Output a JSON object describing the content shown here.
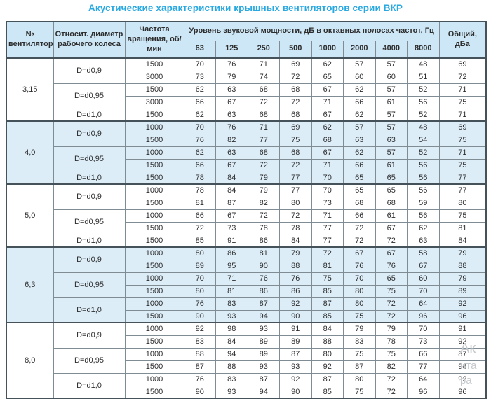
{
  "title": "Акустические характеристики крышных вентиляторов серии ВКР",
  "colors": {
    "title_accent": "#29a9e1",
    "header_bg": "#cde7f6",
    "band_bg": "#dcedf8",
    "grid_border": "#7f8c94",
    "frame_border": "#46525a",
    "text": "#2d2d2d",
    "watermark": "#c6cacd"
  },
  "watermark": {
    "line1": "Ак",
    "line2": "ита",
    "line3": "ра"
  },
  "table": {
    "headers": {
      "fan": "№ вентилятора",
      "diameter": "Относит. диаметр рабочего колеса",
      "speed": "Частота вращения, об/мин",
      "spl_group": "Уровень звуковой мощности, дБ в октавных полосах частот, Гц",
      "freqs": [
        "63",
        "125",
        "250",
        "500",
        "1000",
        "2000",
        "4000",
        "8000"
      ],
      "total": "Общий, дБа"
    },
    "groups": [
      {
        "fan": "3,15",
        "shaded": false,
        "subgroups": [
          {
            "diameter": "D=d0,9",
            "rows": [
              {
                "speed": "1500",
                "values": [
                  70,
                  76,
                  71,
                  69,
                  62,
                  57,
                  57,
                  48
                ],
                "total": 69
              },
              {
                "speed": "3000",
                "values": [
                  73,
                  79,
                  74,
                  72,
                  65,
                  60,
                  60,
                  51
                ],
                "total": 72
              }
            ]
          },
          {
            "diameter": "D=d0,95",
            "rows": [
              {
                "speed": "1500",
                "values": [
                  62,
                  63,
                  68,
                  68,
                  67,
                  62,
                  57,
                  52
                ],
                "total": 71
              },
              {
                "speed": "3000",
                "values": [
                  66,
                  67,
                  72,
                  72,
                  71,
                  66,
                  61,
                  56
                ],
                "total": 75
              }
            ]
          },
          {
            "diameter": "D=d1,0",
            "rows": [
              {
                "speed": "1500",
                "values": [
                  62,
                  63,
                  68,
                  68,
                  67,
                  62,
                  57,
                  52
                ],
                "total": 71
              }
            ]
          }
        ]
      },
      {
        "fan": "4,0",
        "shaded": true,
        "subgroups": [
          {
            "diameter": "D=d0,9",
            "rows": [
              {
                "speed": "1000",
                "values": [
                  70,
                  76,
                  71,
                  69,
                  62,
                  57,
                  57,
                  48
                ],
                "total": 69
              },
              {
                "speed": "1500",
                "values": [
                  76,
                  82,
                  77,
                  75,
                  68,
                  63,
                  63,
                  54
                ],
                "total": 75
              }
            ]
          },
          {
            "diameter": "D=d0,95",
            "rows": [
              {
                "speed": "1000",
                "values": [
                  62,
                  63,
                  68,
                  68,
                  67,
                  62,
                  57,
                  52
                ],
                "total": 71
              },
              {
                "speed": "1500",
                "values": [
                  66,
                  67,
                  72,
                  72,
                  71,
                  66,
                  61,
                  56
                ],
                "total": 75
              }
            ]
          },
          {
            "diameter": "D=d1,0",
            "rows": [
              {
                "speed": "1500",
                "values": [
                  78,
                  84,
                  79,
                  77,
                  70,
                  65,
                  65,
                  56
                ],
                "total": 77
              }
            ]
          }
        ]
      },
      {
        "fan": "5,0",
        "shaded": false,
        "subgroups": [
          {
            "diameter": "D=d0,9",
            "rows": [
              {
                "speed": "1000",
                "values": [
                  78,
                  84,
                  79,
                  77,
                  70,
                  65,
                  65,
                  56
                ],
                "total": 77
              },
              {
                "speed": "1500",
                "values": [
                  81,
                  87,
                  82,
                  80,
                  73,
                  68,
                  68,
                  59
                ],
                "total": 80
              }
            ]
          },
          {
            "diameter": "D=d0,95",
            "rows": [
              {
                "speed": "1000",
                "values": [
                  66,
                  67,
                  72,
                  72,
                  71,
                  66,
                  61,
                  56
                ],
                "total": 75
              },
              {
                "speed": "1500",
                "values": [
                  72,
                  73,
                  78,
                  78,
                  77,
                  72,
                  67,
                  62
                ],
                "total": 81
              }
            ]
          },
          {
            "diameter": "D=d1,0",
            "rows": [
              {
                "speed": "1500",
                "values": [
                  85,
                  91,
                  86,
                  84,
                  77,
                  72,
                  72,
                  63
                ],
                "total": 84
              }
            ]
          }
        ]
      },
      {
        "fan": "6,3",
        "shaded": true,
        "subgroups": [
          {
            "diameter": "D=d0,9",
            "rows": [
              {
                "speed": "1000",
                "values": [
                  80,
                  86,
                  81,
                  79,
                  72,
                  67,
                  67,
                  58
                ],
                "total": 79
              },
              {
                "speed": "1500",
                "values": [
                  89,
                  95,
                  90,
                  88,
                  81,
                  76,
                  76,
                  67
                ],
                "total": 88
              }
            ]
          },
          {
            "diameter": "D=d0,95",
            "rows": [
              {
                "speed": "1000",
                "values": [
                  70,
                  71,
                  76,
                  76,
                  75,
                  70,
                  65,
                  60
                ],
                "total": 79
              },
              {
                "speed": "1500",
                "values": [
                  80,
                  81,
                  86,
                  86,
                  85,
                  80,
                  75,
                  70
                ],
                "total": 89
              }
            ]
          },
          {
            "diameter": "D=d1,0",
            "rows": [
              {
                "speed": "1000",
                "values": [
                  76,
                  83,
                  87,
                  92,
                  87,
                  80,
                  72,
                  64
                ],
                "total": 92
              },
              {
                "speed": "1500",
                "values": [
                  90,
                  93,
                  94,
                  90,
                  85,
                  75,
                  72,
                  96
                ],
                "total": 96
              }
            ]
          }
        ]
      },
      {
        "fan": "8,0",
        "shaded": false,
        "subgroups": [
          {
            "diameter": "D=d0,9",
            "rows": [
              {
                "speed": "1000",
                "values": [
                  92,
                  98,
                  93,
                  91,
                  84,
                  79,
                  79,
                  70
                ],
                "total": 91
              },
              {
                "speed": "1500",
                "values": [
                  83,
                  84,
                  89,
                  89,
                  88,
                  83,
                  78,
                  73
                ],
                "total": 92
              }
            ]
          },
          {
            "diameter": "D=d0,95",
            "rows": [
              {
                "speed": "1000",
                "values": [
                  88,
                  94,
                  89,
                  87,
                  80,
                  75,
                  75,
                  66
                ],
                "total": 87
              },
              {
                "speed": "1500",
                "values": [
                  87,
                  88,
                  93,
                  93,
                  92,
                  87,
                  82,
                  77
                ],
                "total": 96
              }
            ]
          },
          {
            "diameter": "D=d1,0",
            "rows": [
              {
                "speed": "1000",
                "values": [
                  76,
                  83,
                  87,
                  92,
                  87,
                  80,
                  72,
                  64
                ],
                "total": 92
              },
              {
                "speed": "1500",
                "values": [
                  90,
                  93,
                  94,
                  90,
                  85,
                  75,
                  72,
                  96
                ],
                "total": 96
              }
            ]
          }
        ]
      }
    ]
  }
}
